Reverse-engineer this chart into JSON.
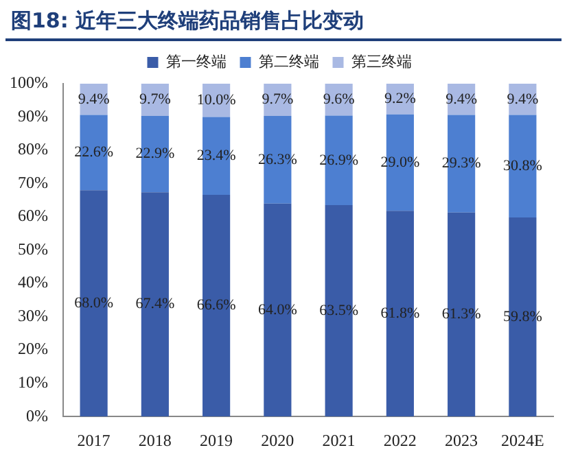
{
  "chart_data": {
    "type": "bar",
    "title": "图18: 近年三大终端药品销售占比变动",
    "stacked": true,
    "legend": "top",
    "grid": false,
    "categories": [
      "2017",
      "2018",
      "2019",
      "2020",
      "2021",
      "2022",
      "2023",
      "2024E"
    ],
    "series": [
      {
        "name": "第一终端",
        "color": "#3a5ca8",
        "values": [
          68.0,
          67.4,
          66.6,
          64.0,
          63.5,
          61.8,
          61.3,
          59.8
        ],
        "value_labels": [
          "68.0%",
          "67.4%",
          "66.6%",
          "64.0%",
          "63.5%",
          "61.8%",
          "61.3%",
          "59.8%"
        ]
      },
      {
        "name": "第二终端",
        "color": "#4d7fd1",
        "values": [
          22.6,
          22.9,
          23.4,
          26.3,
          26.9,
          29.0,
          29.3,
          30.8
        ],
        "value_labels": [
          "22.6%",
          "22.9%",
          "23.4%",
          "26.3%",
          "26.9%",
          "29.0%",
          "29.3%",
          "30.8%"
        ]
      },
      {
        "name": "第三终端",
        "color": "#a9b9e3",
        "values": [
          9.4,
          9.7,
          10.0,
          9.7,
          9.6,
          9.2,
          9.4,
          9.4
        ],
        "value_labels": [
          "9.4%",
          "9.7%",
          "10.0%",
          "9.7%",
          "9.6%",
          "9.2%",
          "9.4%",
          "9.4%"
        ]
      }
    ],
    "ylim": [
      0,
      100
    ],
    "yticks": [
      {
        "value": 0,
        "label": "0%"
      },
      {
        "value": 10,
        "label": "10%"
      },
      {
        "value": 20,
        "label": "20%"
      },
      {
        "value": 30,
        "label": "30%"
      },
      {
        "value": 40,
        "label": "40%"
      },
      {
        "value": 50,
        "label": "50%"
      },
      {
        "value": 60,
        "label": "60%"
      },
      {
        "value": 70,
        "label": "70%"
      },
      {
        "value": 80,
        "label": "80%"
      },
      {
        "value": 90,
        "label": "90%"
      },
      {
        "value": 100,
        "label": "100%"
      }
    ]
  }
}
